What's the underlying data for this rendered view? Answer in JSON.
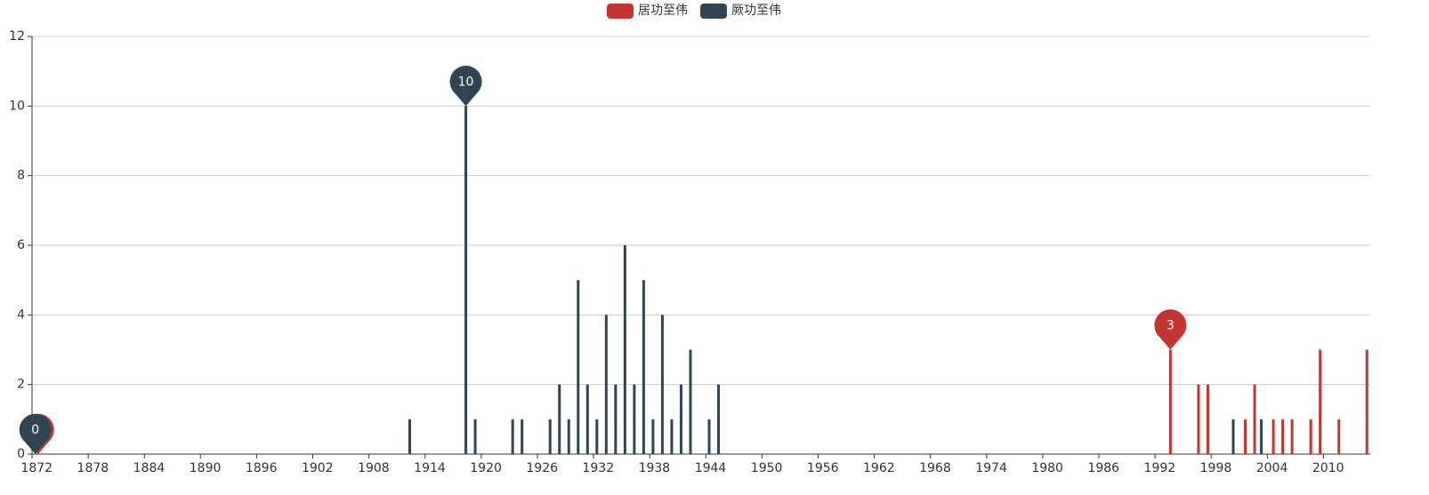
{
  "chart_data": {
    "type": "bar",
    "categories": [
      "1872",
      null,
      null,
      null,
      null,
      null,
      "1878",
      null,
      null,
      null,
      null,
      null,
      "1884",
      null,
      null,
      null,
      null,
      null,
      "1890",
      null,
      null,
      null,
      null,
      null,
      "1896",
      null,
      null,
      null,
      null,
      null,
      "1902",
      null,
      null,
      null,
      null,
      null,
      "1908",
      null,
      null,
      null,
      null,
      null,
      "1914",
      null,
      null,
      null,
      null,
      null,
      "1920",
      null,
      null,
      null,
      null,
      null,
      "1926",
      null,
      null,
      null,
      null,
      null,
      "1932",
      null,
      null,
      null,
      null,
      null,
      "1938",
      null,
      null,
      null,
      null,
      null,
      "1944",
      null,
      null,
      null,
      null,
      null,
      "1950",
      null,
      null,
      null,
      null,
      null,
      "1956",
      null,
      null,
      null,
      null,
      null,
      "1962",
      null,
      null,
      null,
      null,
      null,
      "1968",
      null,
      null,
      null,
      null,
      null,
      "1974",
      null,
      null,
      null,
      null,
      null,
      "1980",
      null,
      null,
      null,
      null,
      null,
      "1986",
      null,
      null,
      null,
      null,
      null,
      "1992",
      null,
      null,
      null,
      null,
      null,
      "1998",
      null,
      null,
      null,
      null,
      null,
      "2004",
      null,
      null,
      null,
      null,
      null,
      "2010",
      null,
      null,
      null,
      null
    ],
    "series": [
      {
        "name": "居功至伟",
        "color": "#c23531",
        "values": [
          0,
          0,
          0,
          0,
          0,
          0,
          0,
          0,
          0,
          0,
          0,
          0,
          0,
          0,
          0,
          0,
          0,
          0,
          0,
          0,
          0,
          0,
          0,
          0,
          0,
          0,
          0,
          0,
          0,
          0,
          0,
          0,
          0,
          0,
          0,
          0,
          0,
          0,
          0,
          0,
          0,
          0,
          0,
          0,
          0,
          0,
          0,
          0,
          0,
          0,
          0,
          0,
          0,
          0,
          0,
          0,
          0,
          0,
          0,
          0,
          0,
          0,
          0,
          0,
          0,
          0,
          0,
          0,
          0,
          0,
          0,
          0,
          0,
          0,
          0,
          0,
          0,
          0,
          0,
          0,
          0,
          0,
          0,
          0,
          0,
          0,
          0,
          0,
          0,
          0,
          0,
          0,
          0,
          0,
          0,
          0,
          0,
          0,
          0,
          0,
          0,
          0,
          0,
          0,
          0,
          0,
          0,
          0,
          0,
          0,
          0,
          0,
          0,
          0,
          0,
          0,
          0,
          0,
          0,
          0,
          0,
          3,
          0,
          0,
          2,
          2,
          0,
          0,
          0,
          1,
          2,
          0,
          1,
          1,
          1,
          0,
          1,
          3,
          0,
          1,
          0,
          0,
          3
        ],
        "markers": [
          {
            "kind": "max",
            "value": 3
          },
          {
            "kind": "min",
            "value": 0
          }
        ]
      },
      {
        "name": "厥功至伟",
        "color": "#2f4554",
        "values": [
          0,
          0,
          0,
          0,
          0,
          0,
          0,
          0,
          0,
          0,
          0,
          0,
          0,
          0,
          0,
          0,
          0,
          0,
          0,
          0,
          0,
          0,
          0,
          0,
          0,
          0,
          0,
          0,
          0,
          0,
          0,
          0,
          0,
          0,
          0,
          0,
          0,
          0,
          0,
          0,
          1,
          0,
          0,
          0,
          0,
          0,
          10,
          1,
          0,
          0,
          0,
          1,
          1,
          0,
          0,
          1,
          2,
          1,
          5,
          2,
          1,
          4,
          2,
          6,
          2,
          5,
          1,
          4,
          1,
          2,
          3,
          0,
          1,
          2,
          0,
          0,
          0,
          0,
          0,
          0,
          0,
          0,
          0,
          0,
          0,
          0,
          0,
          0,
          0,
          0,
          0,
          0,
          0,
          0,
          0,
          0,
          0,
          0,
          0,
          0,
          0,
          0,
          0,
          0,
          0,
          0,
          0,
          0,
          0,
          0,
          0,
          0,
          0,
          0,
          0,
          0,
          0,
          0,
          0,
          0,
          0,
          0,
          0,
          0,
          0,
          0,
          0,
          0,
          1,
          0,
          0,
          1,
          0,
          0,
          0,
          0,
          0,
          0,
          0,
          0,
          0,
          0,
          0
        ],
        "markers": [
          {
            "kind": "max",
            "value": 10
          },
          {
            "kind": "min",
            "value": 0
          }
        ]
      }
    ],
    "ylim": [
      0,
      12
    ],
    "yticks": [
      0,
      2,
      4,
      6,
      8,
      10,
      12
    ],
    "grid": true,
    "legend": "top"
  }
}
